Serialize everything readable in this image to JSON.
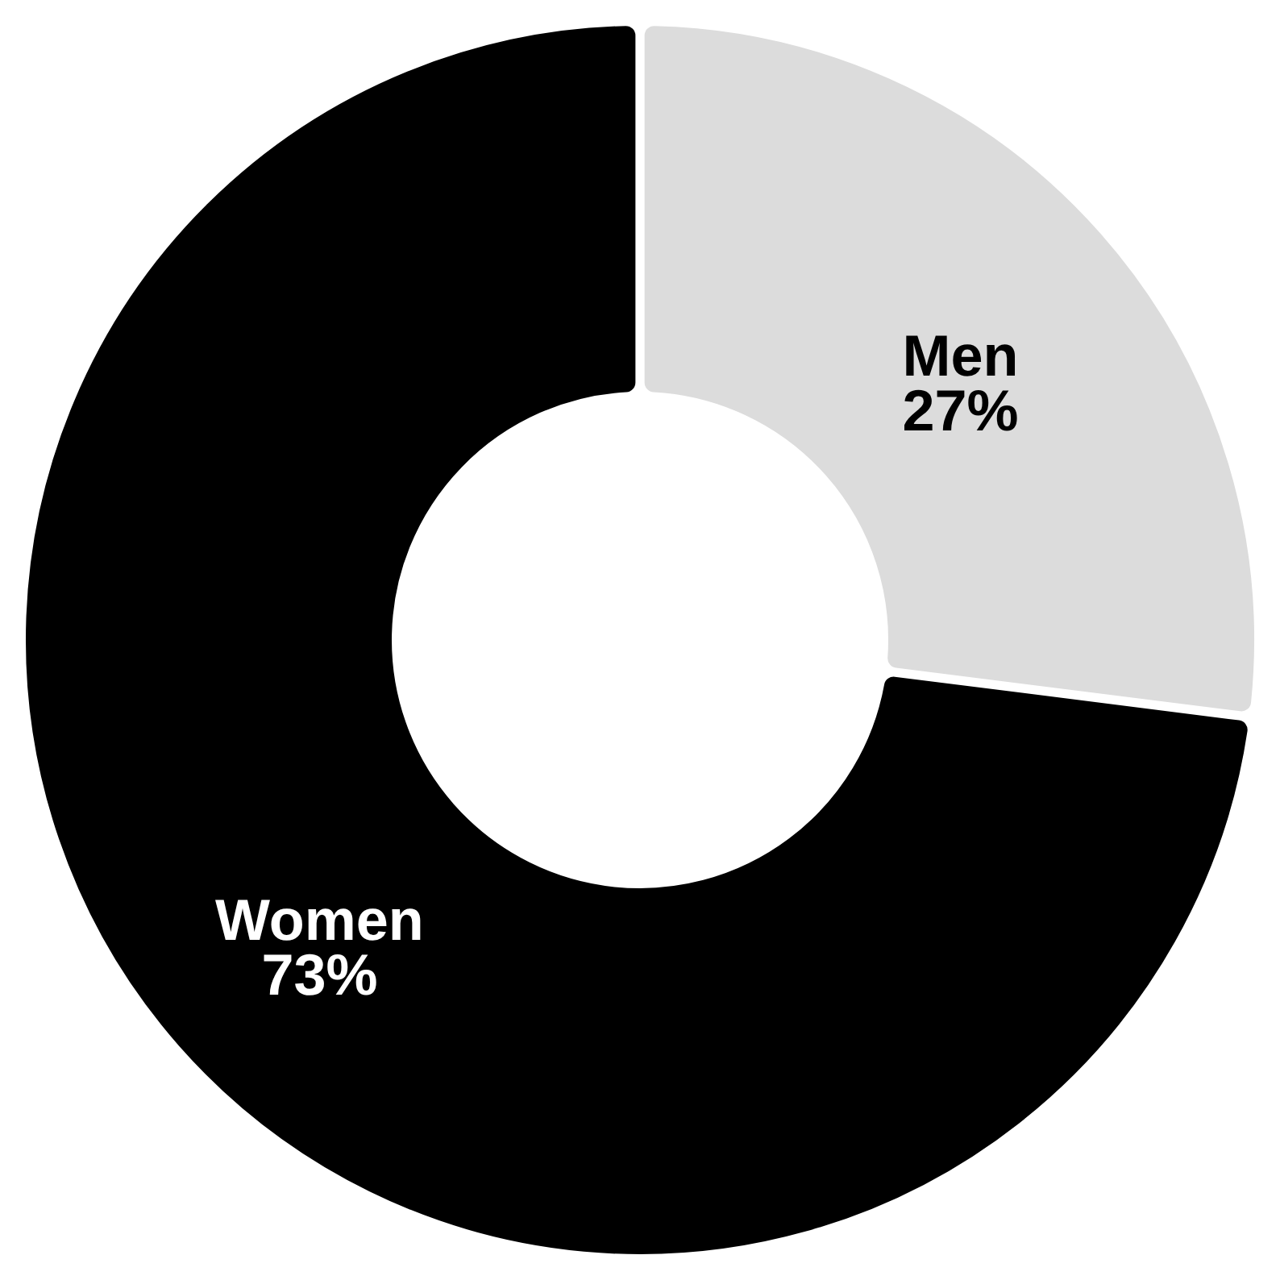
{
  "chart_data": {
    "type": "donut",
    "categories": [
      "Men",
      "Women"
    ],
    "values": [
      27,
      73
    ],
    "colors": [
      "#dcdcdc",
      "#000000"
    ],
    "value_labels": [
      "27%",
      "73%"
    ]
  }
}
